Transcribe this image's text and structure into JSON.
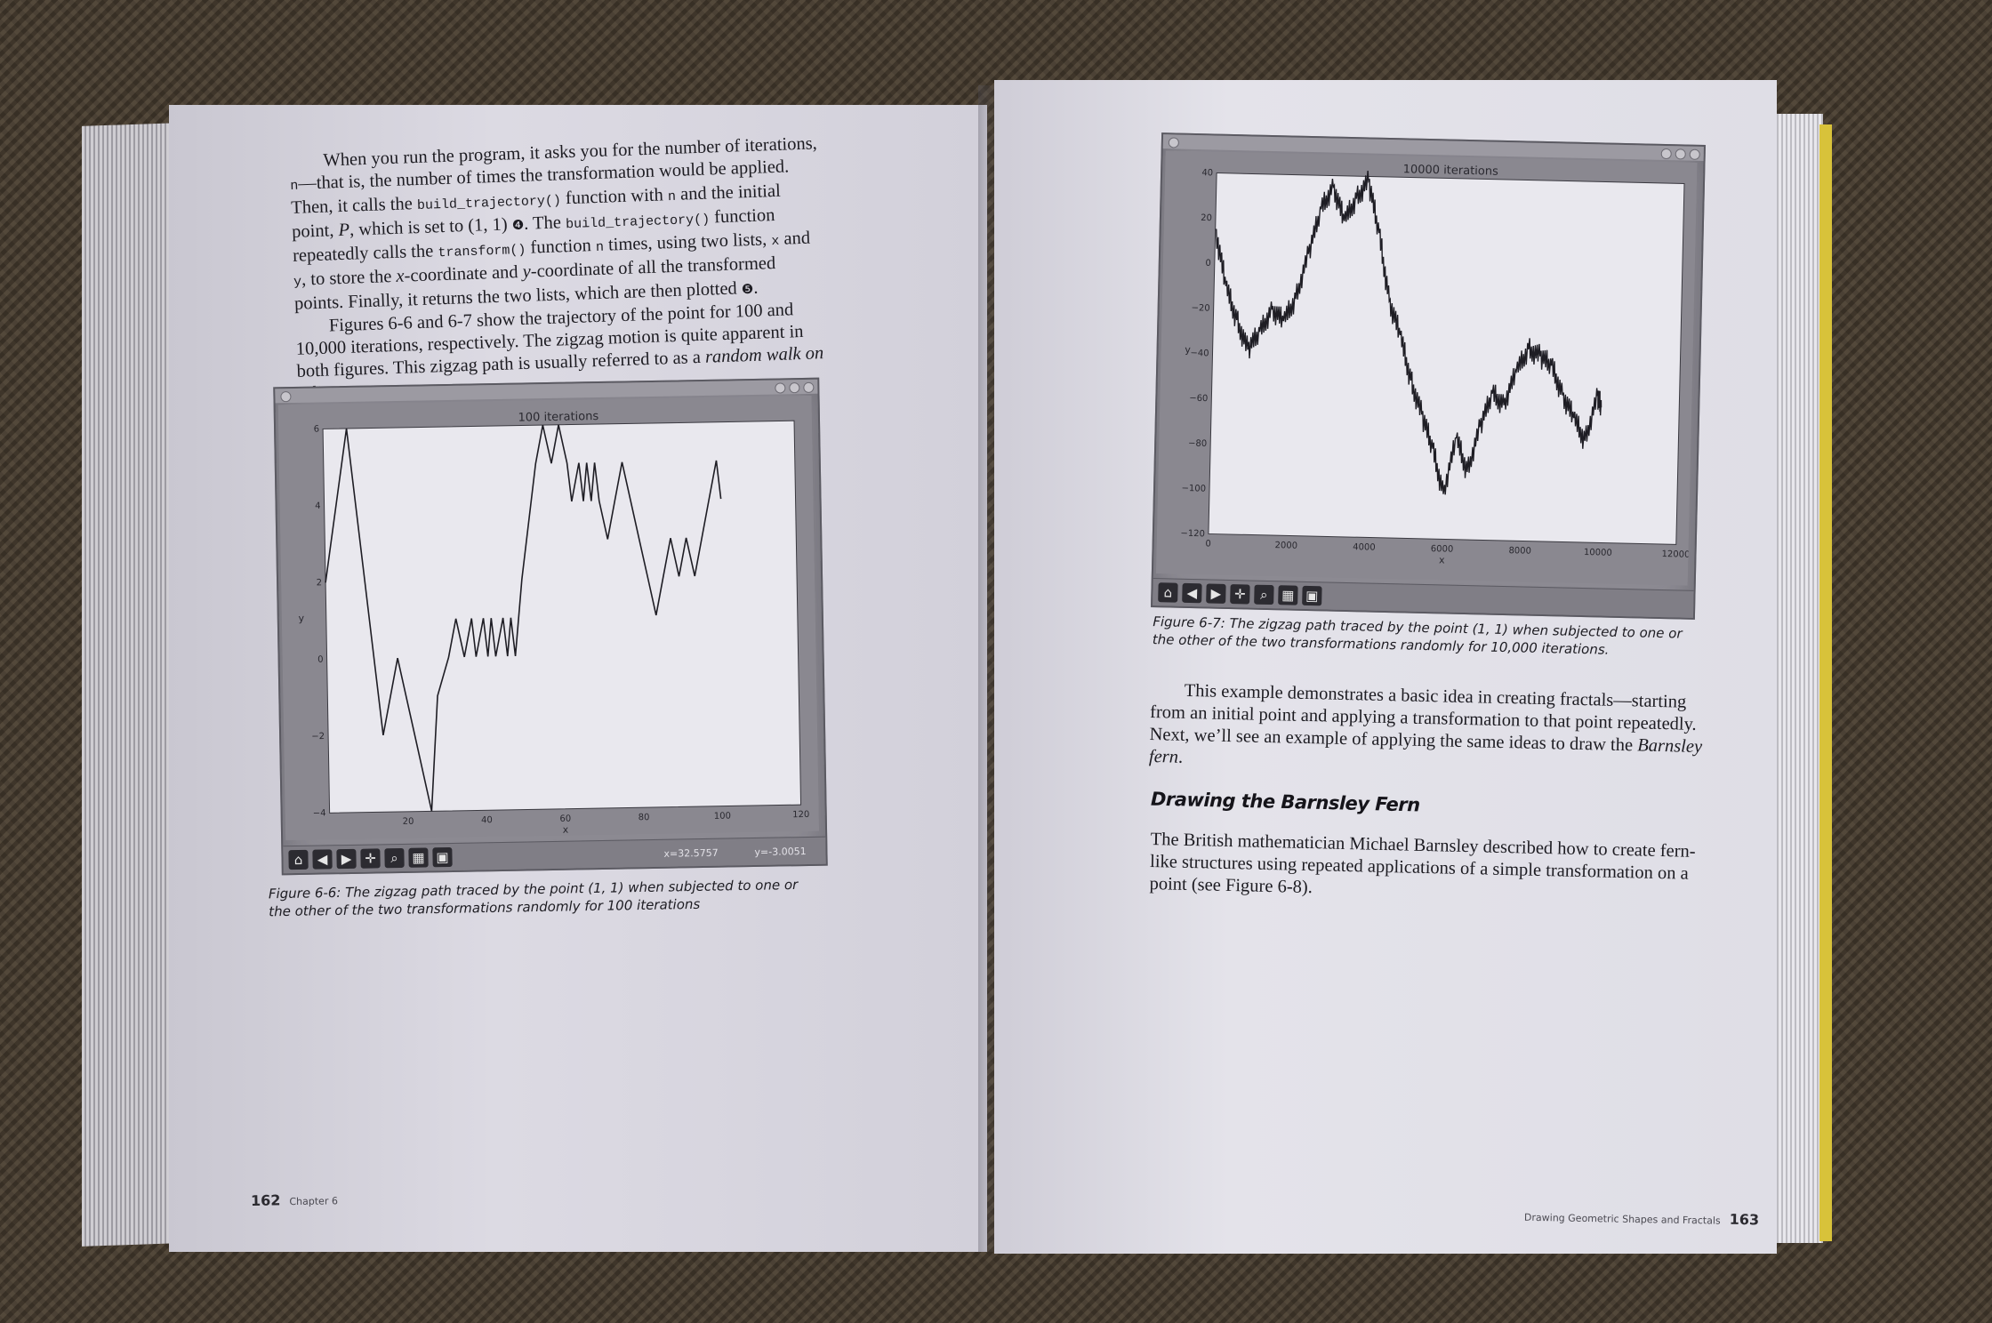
{
  "left_page": {
    "paragraph1": [
      {
        "t": "When you run the program, it asks you for the number of iterations, "
      },
      {
        "t": "n",
        "s": "mono"
      },
      {
        "t": "—that is, the number of times the transformation would be applied. Then, it calls the "
      },
      {
        "t": "build_trajectory()",
        "s": "mono"
      },
      {
        "t": " function with "
      },
      {
        "t": "n",
        "s": "mono"
      },
      {
        "t": " and the initial point, "
      },
      {
        "t": "P",
        "s": "ital"
      },
      {
        "t": ", which is set to (1, 1) "
      },
      {
        "t": "❹",
        "s": "circnum"
      },
      {
        "t": ". The "
      },
      {
        "t": "build_trajectory()",
        "s": "mono"
      },
      {
        "t": " function repeatedly calls the "
      },
      {
        "t": "transform()",
        "s": "mono"
      },
      {
        "t": " function "
      },
      {
        "t": "n",
        "s": "mono"
      },
      {
        "t": " times, using two lists, "
      },
      {
        "t": "x",
        "s": "mono"
      },
      {
        "t": " and "
      },
      {
        "t": "y",
        "s": "mono"
      },
      {
        "t": ", to store the "
      },
      {
        "t": "x",
        "s": "ital"
      },
      {
        "t": "-coordinate and "
      },
      {
        "t": "y",
        "s": "ital"
      },
      {
        "t": "-coordinate of all the transformed points. Finally, it returns the two lists, which are then plotted "
      },
      {
        "t": "❺",
        "s": "circnum"
      },
      {
        "t": "."
      }
    ],
    "paragraph2": [
      {
        "t": "Figures 6-6 and 6-7 show the trajectory of the point for 100 and 10,000 iterations, respectively. The zigzag motion is quite apparent in both figures. This zigzag path is usually referred to as a "
      },
      {
        "t": "random walk on a line",
        "s": "ital"
      },
      {
        "t": "."
      }
    ],
    "caption": "Figure 6-6: The zigzag path traced by the point (1, 1) when subjected to one or the other of the two transformations randomly for 100 iterations",
    "folio_number": "162",
    "folio_label": "Chapter 6"
  },
  "right_page": {
    "caption": "Figure 6-7: The zigzag path traced by the point (1, 1) when subjected to one or the other of the two transformations randomly for 10,000 iterations.",
    "paragraph1": [
      {
        "t": "This example demonstrates a basic idea in creating fractals—starting from an initial point and applying a transformation to that point repeatedly. Next, we’ll see an example of applying the same ideas to draw the "
      },
      {
        "t": "Barnsley fern",
        "s": "ital"
      },
      {
        "t": "."
      }
    ],
    "heading": "Drawing the Barnsley Fern",
    "paragraph2": [
      {
        "t": "The British mathematician Michael Barnsley described how to create fern-like structures using repeated applications of a simple transformation on a point (see Figure 6-8)."
      }
    ],
    "folio_label": "Drawing Geometric Shapes and Fractals",
    "folio_number": "163"
  },
  "toolbar_icons": [
    "home-icon",
    "back-icon",
    "forward-icon",
    "pan-icon",
    "zoom-icon",
    "configure-icon",
    "save-icon"
  ],
  "toolbar_glyphs": [
    "⌂",
    "◀",
    "▶",
    "✛",
    "⌕",
    "▦",
    "▣"
  ],
  "chart_data": [
    {
      "type": "line",
      "title": "100 iterations",
      "xlabel": "x",
      "ylabel": "y",
      "xlim": [
        0,
        120
      ],
      "ylim": [
        -4,
        6
      ],
      "xticks": [
        "20",
        "40",
        "60",
        "80",
        "100",
        "120"
      ],
      "yticks": [
        "6",
        "4",
        "2",
        "0",
        "−2",
        "−4"
      ],
      "x": [
        0,
        6,
        10,
        14,
        18,
        22,
        26,
        28,
        31,
        33,
        35,
        37,
        38,
        40,
        41,
        42,
        43,
        45,
        46,
        47,
        48,
        50,
        54,
        56,
        58,
        60,
        62,
        63,
        65,
        66,
        67,
        68,
        69,
        70,
        72,
        74,
        76,
        78,
        80,
        82,
        84,
        86,
        88,
        90,
        92,
        94,
        96,
        98,
        100,
        101
      ],
      "y": [
        2,
        6,
        2,
        -2,
        0,
        -2,
        -4,
        -1,
        0,
        1,
        0,
        1,
        0,
        1,
        0,
        1,
        0,
        1,
        0,
        1,
        0,
        2,
        5,
        6,
        5,
        6,
        5,
        4,
        5,
        4,
        5,
        4,
        5,
        4,
        3,
        4,
        5,
        4,
        3,
        2,
        1,
        2,
        3,
        2,
        3,
        2,
        3,
        4,
        5,
        4
      ],
      "coord_x": "x=32.5757",
      "coord_y": "y=-3.0051"
    },
    {
      "type": "line",
      "title": "10000 iterations",
      "xlabel": "x",
      "ylabel": "y",
      "xlim": [
        0,
        12000
      ],
      "ylim": [
        -120,
        40
      ],
      "xticks": [
        "0",
        "2000",
        "4000",
        "6000",
        "8000",
        "10000",
        "12000"
      ],
      "yticks": [
        "40",
        "20",
        "0",
        "−20",
        "−40",
        "−60",
        "−80",
        "−100",
        "−120"
      ],
      "x": [
        0,
        300,
        600,
        900,
        1200,
        1500,
        1800,
        2100,
        2400,
        2700,
        3000,
        3300,
        3600,
        3900,
        4200,
        4500,
        4800,
        5100,
        5400,
        5700,
        6000,
        6300,
        6600,
        6900,
        7200,
        7500,
        7800,
        8100,
        8400,
        8700,
        9000,
        9300,
        9600,
        9900,
        10000
      ],
      "y": [
        15,
        -10,
        -25,
        -38,
        -30,
        -20,
        -25,
        -15,
        5,
        25,
        35,
        20,
        30,
        38,
        15,
        -15,
        -30,
        -50,
        -65,
        -80,
        -100,
        -75,
        -90,
        -70,
        -55,
        -60,
        -45,
        -35,
        -38,
        -42,
        -55,
        -65,
        -75,
        -55,
        -60
      ]
    }
  ]
}
